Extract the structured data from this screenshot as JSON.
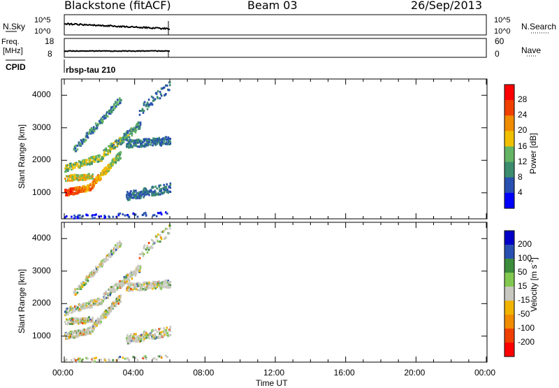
{
  "header": {
    "station": "Blackstone (fitACF)",
    "beam": "Beam 03",
    "date": "26/Sep/2013"
  },
  "summary": {
    "nsky_label": "N.Sky",
    "nsky_ticks": [
      "10^5",
      "10^0"
    ],
    "nsky_right_ticks": [
      "10^5",
      "10^0"
    ],
    "nsearch_label": "N.Search",
    "freq_label": "Freq.",
    "freq_unit": "[MHz]",
    "freq_ticks": [
      "18",
      "8"
    ],
    "nave_ticks": [
      "60",
      "0"
    ],
    "nave_label": "Nave",
    "cpid_label": "CPID",
    "cpid_value": "rbsp-tau 210"
  },
  "colors": {
    "grey": "#c8c8c0",
    "power": [
      "#0000ff",
      "#2850b0",
      "#3c8c6e",
      "#64b464",
      "#f0c000",
      "#f08c00",
      "#f04000",
      "#ff0000"
    ],
    "velocity": [
      "#ff0000",
      "#f04000",
      "#f08c00",
      "#f0b400",
      "#c8c8c0",
      "#82c850",
      "#3c8c3c",
      "#2850b0",
      "#0000c8"
    ]
  },
  "chart_data": [
    {
      "type": "heatmap",
      "name": "power",
      "ylabel": "Slant Range [km]",
      "yticks": [
        1000,
        2000,
        3000,
        4000
      ],
      "ylim": [
        200,
        4500
      ],
      "xlim_hours": [
        0,
        24
      ],
      "data_coverage_hours": [
        0,
        6
      ],
      "colorbar_label": "Power [dB]",
      "colorbar_ticks": [
        "28",
        "24",
        "20",
        "16",
        "12",
        "8",
        "4"
      ],
      "colorbar_range": [
        0,
        32
      ]
    },
    {
      "type": "heatmap",
      "name": "velocity",
      "ylabel": "Slant Range [km]",
      "yticks": [
        1000,
        2000,
        3000,
        4000
      ],
      "ylim": [
        200,
        4500
      ],
      "xlim_hours": [
        0,
        24
      ],
      "data_coverage_hours": [
        0,
        6
      ],
      "colorbar_label": "Velocity [m s",
      "colorbar_label_sup": "-1",
      "colorbar_label_end": "]",
      "colorbar_ticks": [
        "200",
        "100",
        "50",
        "15",
        "-15",
        "-50",
        "-100",
        "-200"
      ]
    }
  ],
  "xaxis": {
    "label": "Time UT",
    "ticks": [
      "00:00",
      "04:00",
      "08:00",
      "12:00",
      "16:00",
      "20:00",
      "00:00"
    ]
  }
}
